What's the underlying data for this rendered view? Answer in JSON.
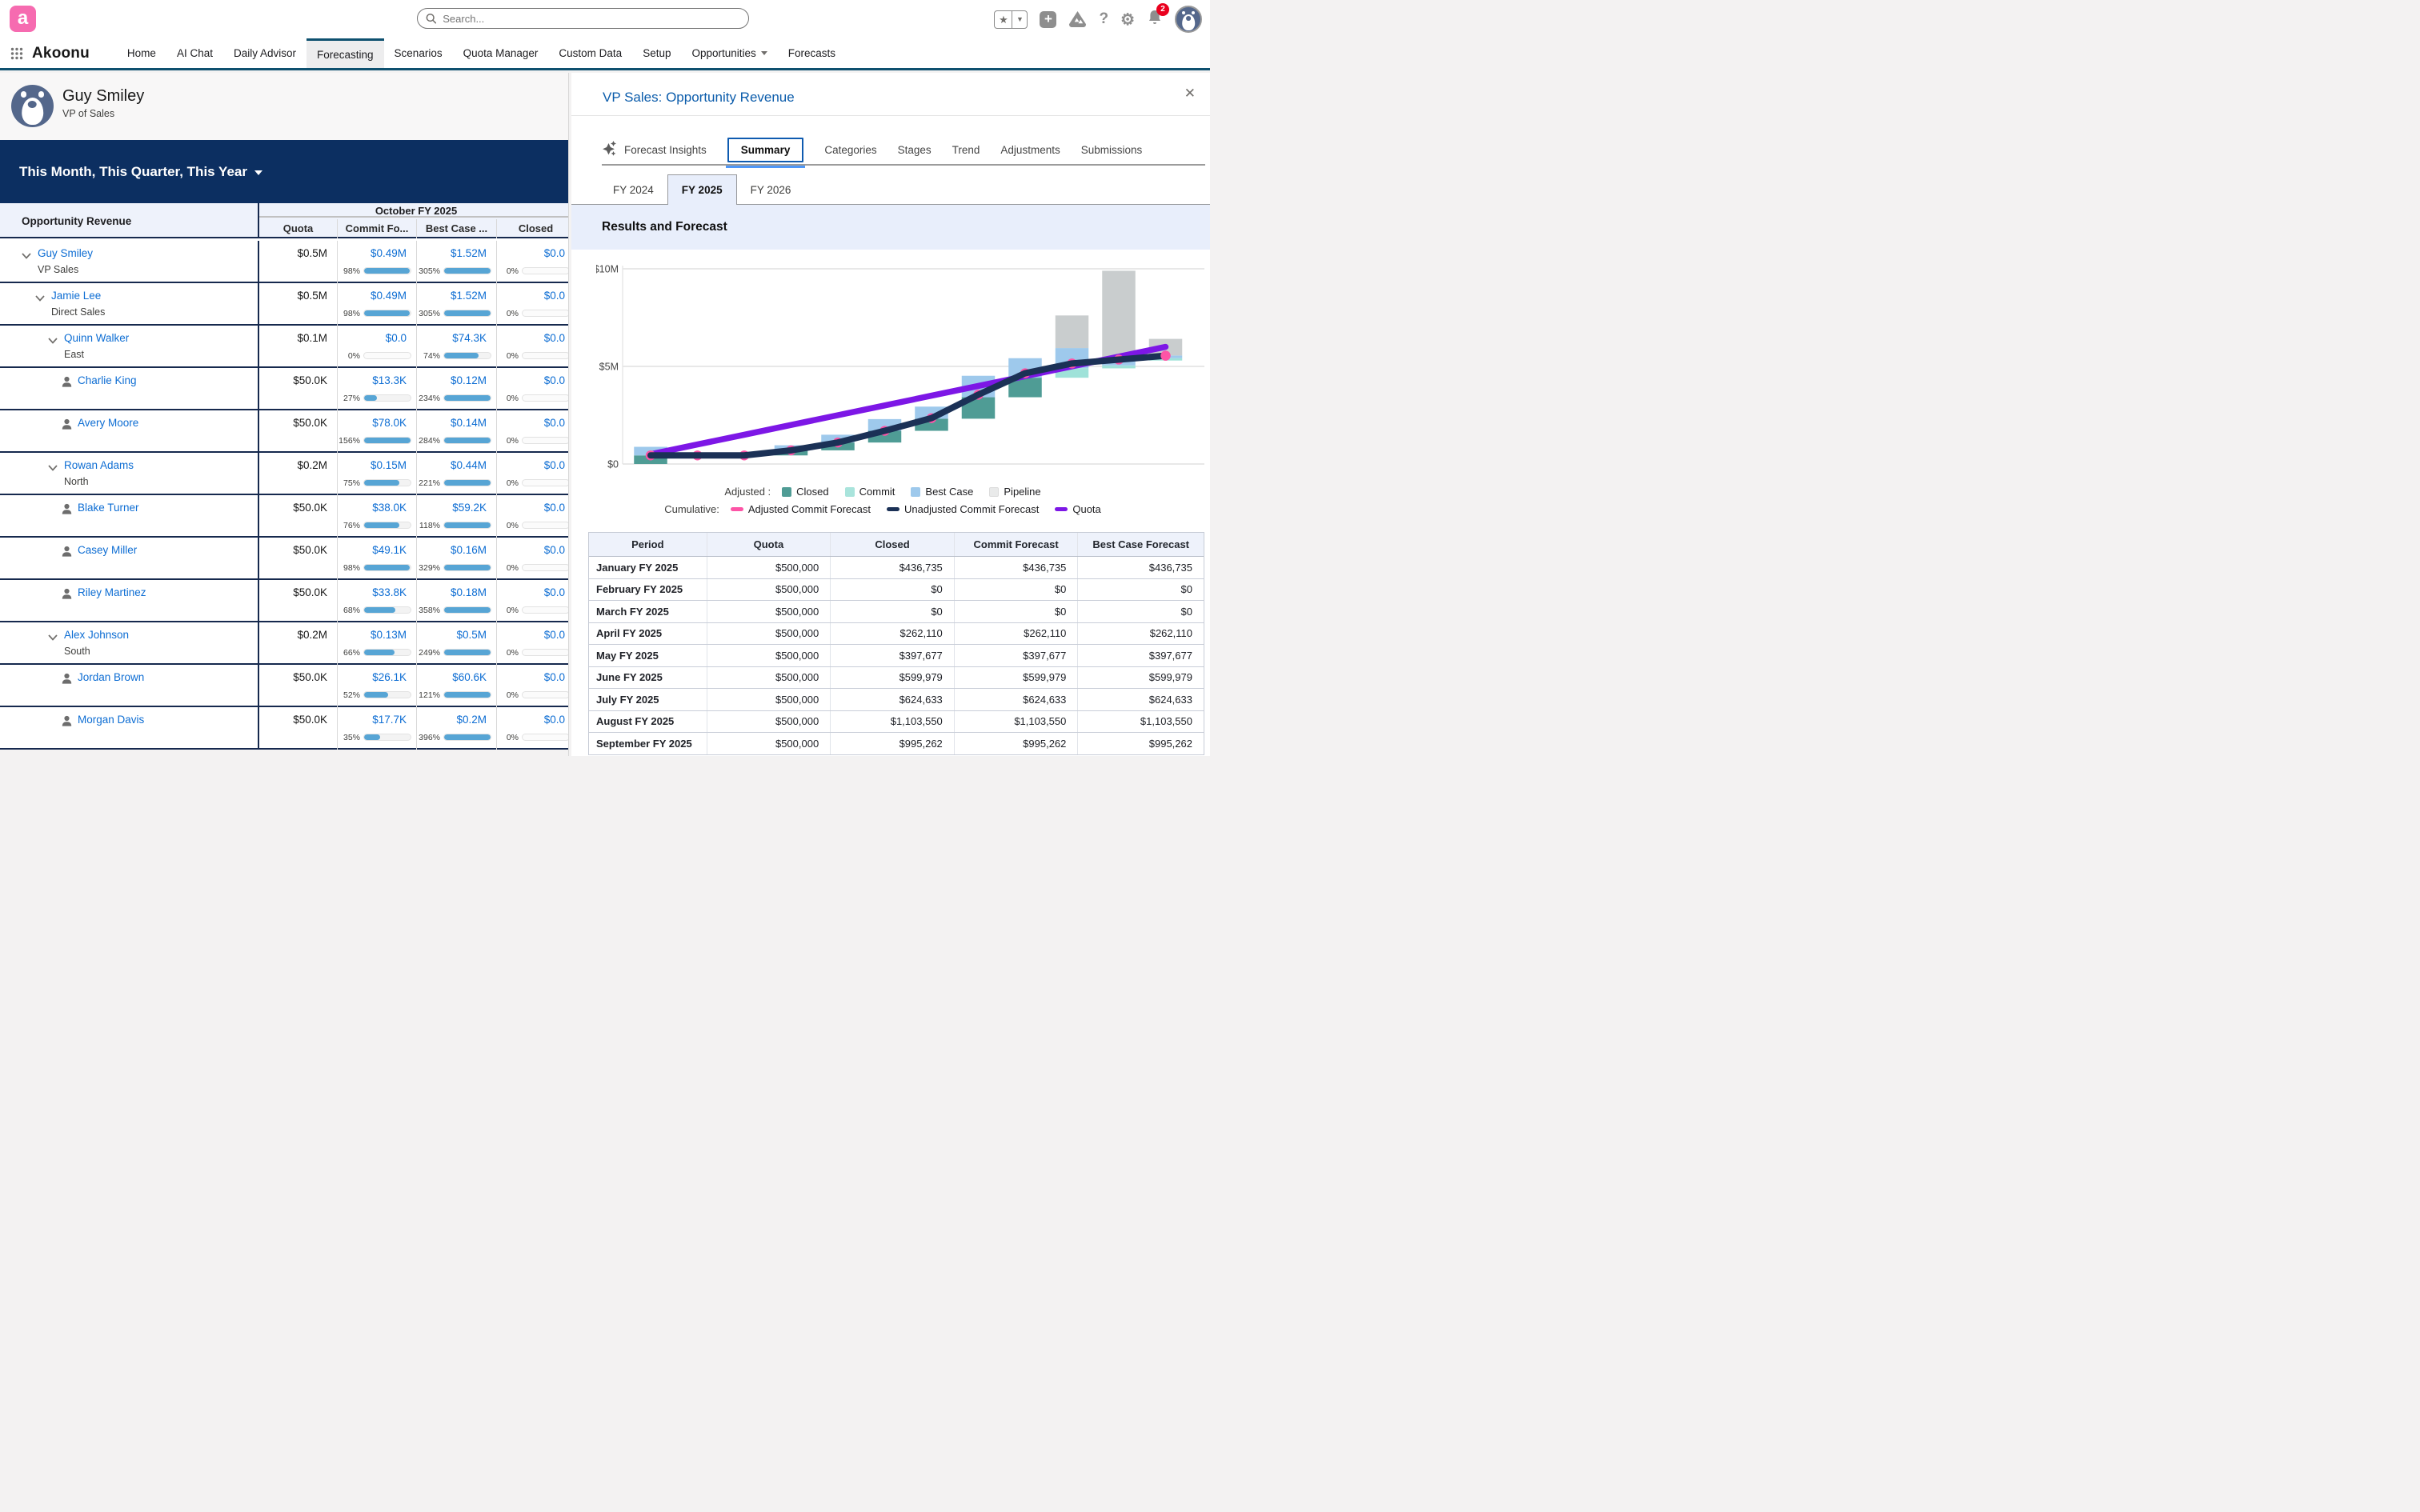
{
  "header": {
    "brand": "Akoonu",
    "search_placeholder": "Search...",
    "notification_count": "2"
  },
  "nav": {
    "items": [
      {
        "label": "Home",
        "active": false,
        "has_menu": false
      },
      {
        "label": "AI Chat",
        "active": false,
        "has_menu": false
      },
      {
        "label": "Daily Advisor",
        "active": false,
        "has_menu": false
      },
      {
        "label": "Forecasting",
        "active": true,
        "has_menu": false
      },
      {
        "label": "Scenarios",
        "active": false,
        "has_menu": false
      },
      {
        "label": "Quota Manager",
        "active": false,
        "has_menu": false
      },
      {
        "label": "Custom Data",
        "active": false,
        "has_menu": false
      },
      {
        "label": "Setup",
        "active": false,
        "has_menu": false
      },
      {
        "label": "Opportunities",
        "active": false,
        "has_menu": true
      },
      {
        "label": "Forecasts",
        "active": false,
        "has_menu": false
      }
    ]
  },
  "profile": {
    "name": "Guy Smiley",
    "role": "VP of Sales"
  },
  "banner": {
    "label": "This Month, This Quarter, This Year"
  },
  "forecast_table": {
    "row_header": "Opportunity Revenue",
    "column_group": "October FY 2025",
    "columns": [
      "Quota",
      "Commit Fo...",
      "Best Case ...",
      "Closed"
    ],
    "rows": [
      {
        "name": "Guy Smiley",
        "sublabel": "VP Sales",
        "level": 0,
        "icon": "chevron",
        "quota": "$0.5M",
        "commit": {
          "value": "$0.49M",
          "pct": 98
        },
        "best": {
          "value": "$1.52M",
          "pct": 305
        },
        "closed": {
          "value": "$0.0",
          "pct": 0
        }
      },
      {
        "name": "Jamie Lee",
        "sublabel": "Direct Sales",
        "level": 1,
        "icon": "chevron",
        "quota": "$0.5M",
        "commit": {
          "value": "$0.49M",
          "pct": 98
        },
        "best": {
          "value": "$1.52M",
          "pct": 305
        },
        "closed": {
          "value": "$0.0",
          "pct": 0
        }
      },
      {
        "name": "Quinn Walker",
        "sublabel": "East",
        "level": 2,
        "icon": "chevron",
        "quota": "$0.1M",
        "commit": {
          "value": "$0.0",
          "pct": 0
        },
        "best": {
          "value": "$74.3K",
          "pct": 74
        },
        "closed": {
          "value": "$0.0",
          "pct": 0
        }
      },
      {
        "name": "Charlie King",
        "sublabel": "",
        "level": 3,
        "icon": "person",
        "quota": "$50.0K",
        "commit": {
          "value": "$13.3K",
          "pct": 27
        },
        "best": {
          "value": "$0.12M",
          "pct": 234
        },
        "closed": {
          "value": "$0.0",
          "pct": 0
        }
      },
      {
        "name": "Avery Moore",
        "sublabel": "",
        "level": 3,
        "icon": "person",
        "quota": "$50.0K",
        "commit": {
          "value": "$78.0K",
          "pct": 156
        },
        "best": {
          "value": "$0.14M",
          "pct": 284
        },
        "closed": {
          "value": "$0.0",
          "pct": 0
        }
      },
      {
        "name": "Rowan Adams",
        "sublabel": "North",
        "level": 2,
        "icon": "chevron",
        "quota": "$0.2M",
        "commit": {
          "value": "$0.15M",
          "pct": 75
        },
        "best": {
          "value": "$0.44M",
          "pct": 221
        },
        "closed": {
          "value": "$0.0",
          "pct": 0
        }
      },
      {
        "name": "Blake Turner",
        "sublabel": "",
        "level": 3,
        "icon": "person",
        "quota": "$50.0K",
        "commit": {
          "value": "$38.0K",
          "pct": 76
        },
        "best": {
          "value": "$59.2K",
          "pct": 118
        },
        "closed": {
          "value": "$0.0",
          "pct": 0
        }
      },
      {
        "name": "Casey Miller",
        "sublabel": "",
        "level": 3,
        "icon": "person",
        "quota": "$50.0K",
        "commit": {
          "value": "$49.1K",
          "pct": 98
        },
        "best": {
          "value": "$0.16M",
          "pct": 329
        },
        "closed": {
          "value": "$0.0",
          "pct": 0
        }
      },
      {
        "name": "Riley Martinez",
        "sublabel": "",
        "level": 3,
        "icon": "person",
        "quota": "$50.0K",
        "commit": {
          "value": "$33.8K",
          "pct": 68
        },
        "best": {
          "value": "$0.18M",
          "pct": 358
        },
        "closed": {
          "value": "$0.0",
          "pct": 0
        }
      },
      {
        "name": "Alex Johnson",
        "sublabel": "South",
        "level": 2,
        "icon": "chevron",
        "quota": "$0.2M",
        "commit": {
          "value": "$0.13M",
          "pct": 66
        },
        "best": {
          "value": "$0.5M",
          "pct": 249
        },
        "closed": {
          "value": "$0.0",
          "pct": 0
        }
      },
      {
        "name": "Jordan Brown",
        "sublabel": "",
        "level": 3,
        "icon": "person",
        "quota": "$50.0K",
        "commit": {
          "value": "$26.1K",
          "pct": 52
        },
        "best": {
          "value": "$60.6K",
          "pct": 121
        },
        "closed": {
          "value": "$0.0",
          "pct": 0
        }
      },
      {
        "name": "Morgan Davis",
        "sublabel": "",
        "level": 3,
        "icon": "person",
        "quota": "$50.0K",
        "commit": {
          "value": "$17.7K",
          "pct": 35
        },
        "best": {
          "value": "$0.2M",
          "pct": 396
        },
        "closed": {
          "value": "$0.0",
          "pct": 0
        }
      }
    ]
  },
  "panel": {
    "title": "VP Sales: Opportunity Revenue",
    "tabs": [
      "Forecast Insights",
      "Summary",
      "Categories",
      "Stages",
      "Trend",
      "Adjustments",
      "Submissions"
    ],
    "active_tab": "Summary",
    "year_tabs": [
      "FY 2024",
      "FY 2025",
      "FY 2026"
    ],
    "active_year": "FY 2025",
    "section_title": "Results and Forecast"
  },
  "chart_data": {
    "type": "bar",
    "subtype": "cumulative-waterfall with cumulative lines",
    "title": "Results and Forecast",
    "categories": [
      "January",
      "February",
      "March",
      "April",
      "May",
      "June",
      "July",
      "August",
      "September",
      "October",
      "November",
      "December"
    ],
    "x_tick_labels_shown": false,
    "ylim": [
      0,
      10500000
    ],
    "yticks": [
      "$0",
      "$5M",
      "$10M"
    ],
    "grid": "horizontal",
    "bar_unit": "millions USD",
    "bars": [
      {
        "base": 0.0,
        "closed": 0.44,
        "commit": 0,
        "best_case": 0.44,
        "pipeline": 0
      },
      {
        "base": 0.44,
        "closed": 0,
        "commit": 0,
        "best_case": 0,
        "pipeline": 0
      },
      {
        "base": 0.44,
        "closed": 0,
        "commit": 0,
        "best_case": 0,
        "pipeline": 0
      },
      {
        "base": 0.44,
        "closed": 0.26,
        "commit": 0,
        "best_case": 0.26,
        "pipeline": 0
      },
      {
        "base": 0.7,
        "closed": 0.4,
        "commit": 0,
        "best_case": 0.4,
        "pipeline": 0
      },
      {
        "base": 1.1,
        "closed": 0.6,
        "commit": 0,
        "best_case": 0.6,
        "pipeline": 0
      },
      {
        "base": 1.7,
        "closed": 0.62,
        "commit": 0,
        "best_case": 0.62,
        "pipeline": 0
      },
      {
        "base": 2.32,
        "closed": 1.1,
        "commit": 0,
        "best_case": 1.1,
        "pipeline": 0
      },
      {
        "base": 3.42,
        "closed": 1.0,
        "commit": 0,
        "best_case": 1.0,
        "pipeline": 0
      },
      {
        "base": 4.42,
        "closed": 0,
        "commit": 0.49,
        "best_case": 1.03,
        "pipeline": 1.67
      },
      {
        "base": 4.9,
        "closed": 0,
        "commit": 0.15,
        "best_case": 0.25,
        "pipeline": 4.6
      },
      {
        "base": 5.3,
        "closed": 0,
        "commit": 0.12,
        "best_case": 0.14,
        "pipeline": 0.85
      }
    ],
    "series": [
      {
        "name": "Adjusted Commit Forecast",
        "style": "point",
        "color": "#fd54a6",
        "values_musd": [
          0.44,
          0.44,
          0.44,
          0.7,
          1.1,
          1.7,
          2.35,
          3.55,
          4.65,
          5.15,
          5.35,
          5.55
        ]
      },
      {
        "name": "Unadjusted Commit Forecast",
        "style": "line",
        "color": "#1b3156",
        "values_musd": [
          0.44,
          0.44,
          0.44,
          0.7,
          1.1,
          1.7,
          2.35,
          3.55,
          4.65,
          5.15,
          5.35,
          5.55
        ]
      },
      {
        "name": "Quota",
        "style": "line",
        "color": "#7d17e6",
        "values_musd": [
          0.5,
          1.0,
          1.5,
          2.0,
          2.5,
          3.0,
          3.5,
          4.0,
          4.5,
          5.0,
          5.5,
          6.0
        ]
      }
    ],
    "legend": {
      "adjusted_label": "Adjusted :",
      "adjusted_items": [
        {
          "label": "Closed",
          "color": "#4f9c95"
        },
        {
          "label": "Commit",
          "color": "#a9e4dc"
        },
        {
          "label": "Best Case",
          "color": "#9ec9ec"
        },
        {
          "label": "Pipeline",
          "color": "#e9eaea"
        }
      ],
      "cumulative_label": "Cumulative:",
      "cumulative_items": [
        {
          "label": "Adjusted Commit Forecast",
          "color": "#fd54a6"
        },
        {
          "label": "Unadjusted Commit Forecast",
          "color": "#1b3156"
        },
        {
          "label": "Quota",
          "color": "#7d17e6"
        }
      ]
    }
  },
  "summary_table": {
    "columns": [
      "Period",
      "Quota",
      "Closed",
      "Commit Forecast",
      "Best Case Forecast"
    ],
    "rows": [
      {
        "period": "January FY 2025",
        "quota": "$500,000",
        "closed": "$436,735",
        "commit": "$436,735",
        "best": "$436,735"
      },
      {
        "period": "February FY 2025",
        "quota": "$500,000",
        "closed": "$0",
        "commit": "$0",
        "best": "$0"
      },
      {
        "period": "March FY 2025",
        "quota": "$500,000",
        "closed": "$0",
        "commit": "$0",
        "best": "$0"
      },
      {
        "period": "April FY 2025",
        "quota": "$500,000",
        "closed": "$262,110",
        "commit": "$262,110",
        "best": "$262,110"
      },
      {
        "period": "May FY 2025",
        "quota": "$500,000",
        "closed": "$397,677",
        "commit": "$397,677",
        "best": "$397,677"
      },
      {
        "period": "June FY 2025",
        "quota": "$500,000",
        "closed": "$599,979",
        "commit": "$599,979",
        "best": "$599,979"
      },
      {
        "period": "July FY 2025",
        "quota": "$500,000",
        "closed": "$624,633",
        "commit": "$624,633",
        "best": "$624,633"
      },
      {
        "period": "August FY 2025",
        "quota": "$500,000",
        "closed": "$1,103,550",
        "commit": "$1,103,550",
        "best": "$1,103,550"
      },
      {
        "period": "September FY 2025",
        "quota": "$500,000",
        "closed": "$995,262",
        "commit": "$995,262",
        "best": "$995,262"
      }
    ]
  },
  "colors": {
    "brand_pink": "#f66bb0",
    "nav_accent": "#0e506f",
    "banner_navy": "#0c2f61",
    "link_blue": "#0d6dd3",
    "panel_title_blue": "#0b5cab",
    "progress_fill": "#57a5d5",
    "bar_closed": "#4f9c95",
    "bar_commit": "#9fe2d9",
    "bar_best_case": "#9ec9ec",
    "bar_pipeline": "#c9cdce",
    "line_unadjusted": "#1b3156",
    "line_quota": "#7d17e6",
    "point_adjusted": "#fd54a6",
    "header_fill": "#eef2fb",
    "notification_red": "#ea001e"
  }
}
